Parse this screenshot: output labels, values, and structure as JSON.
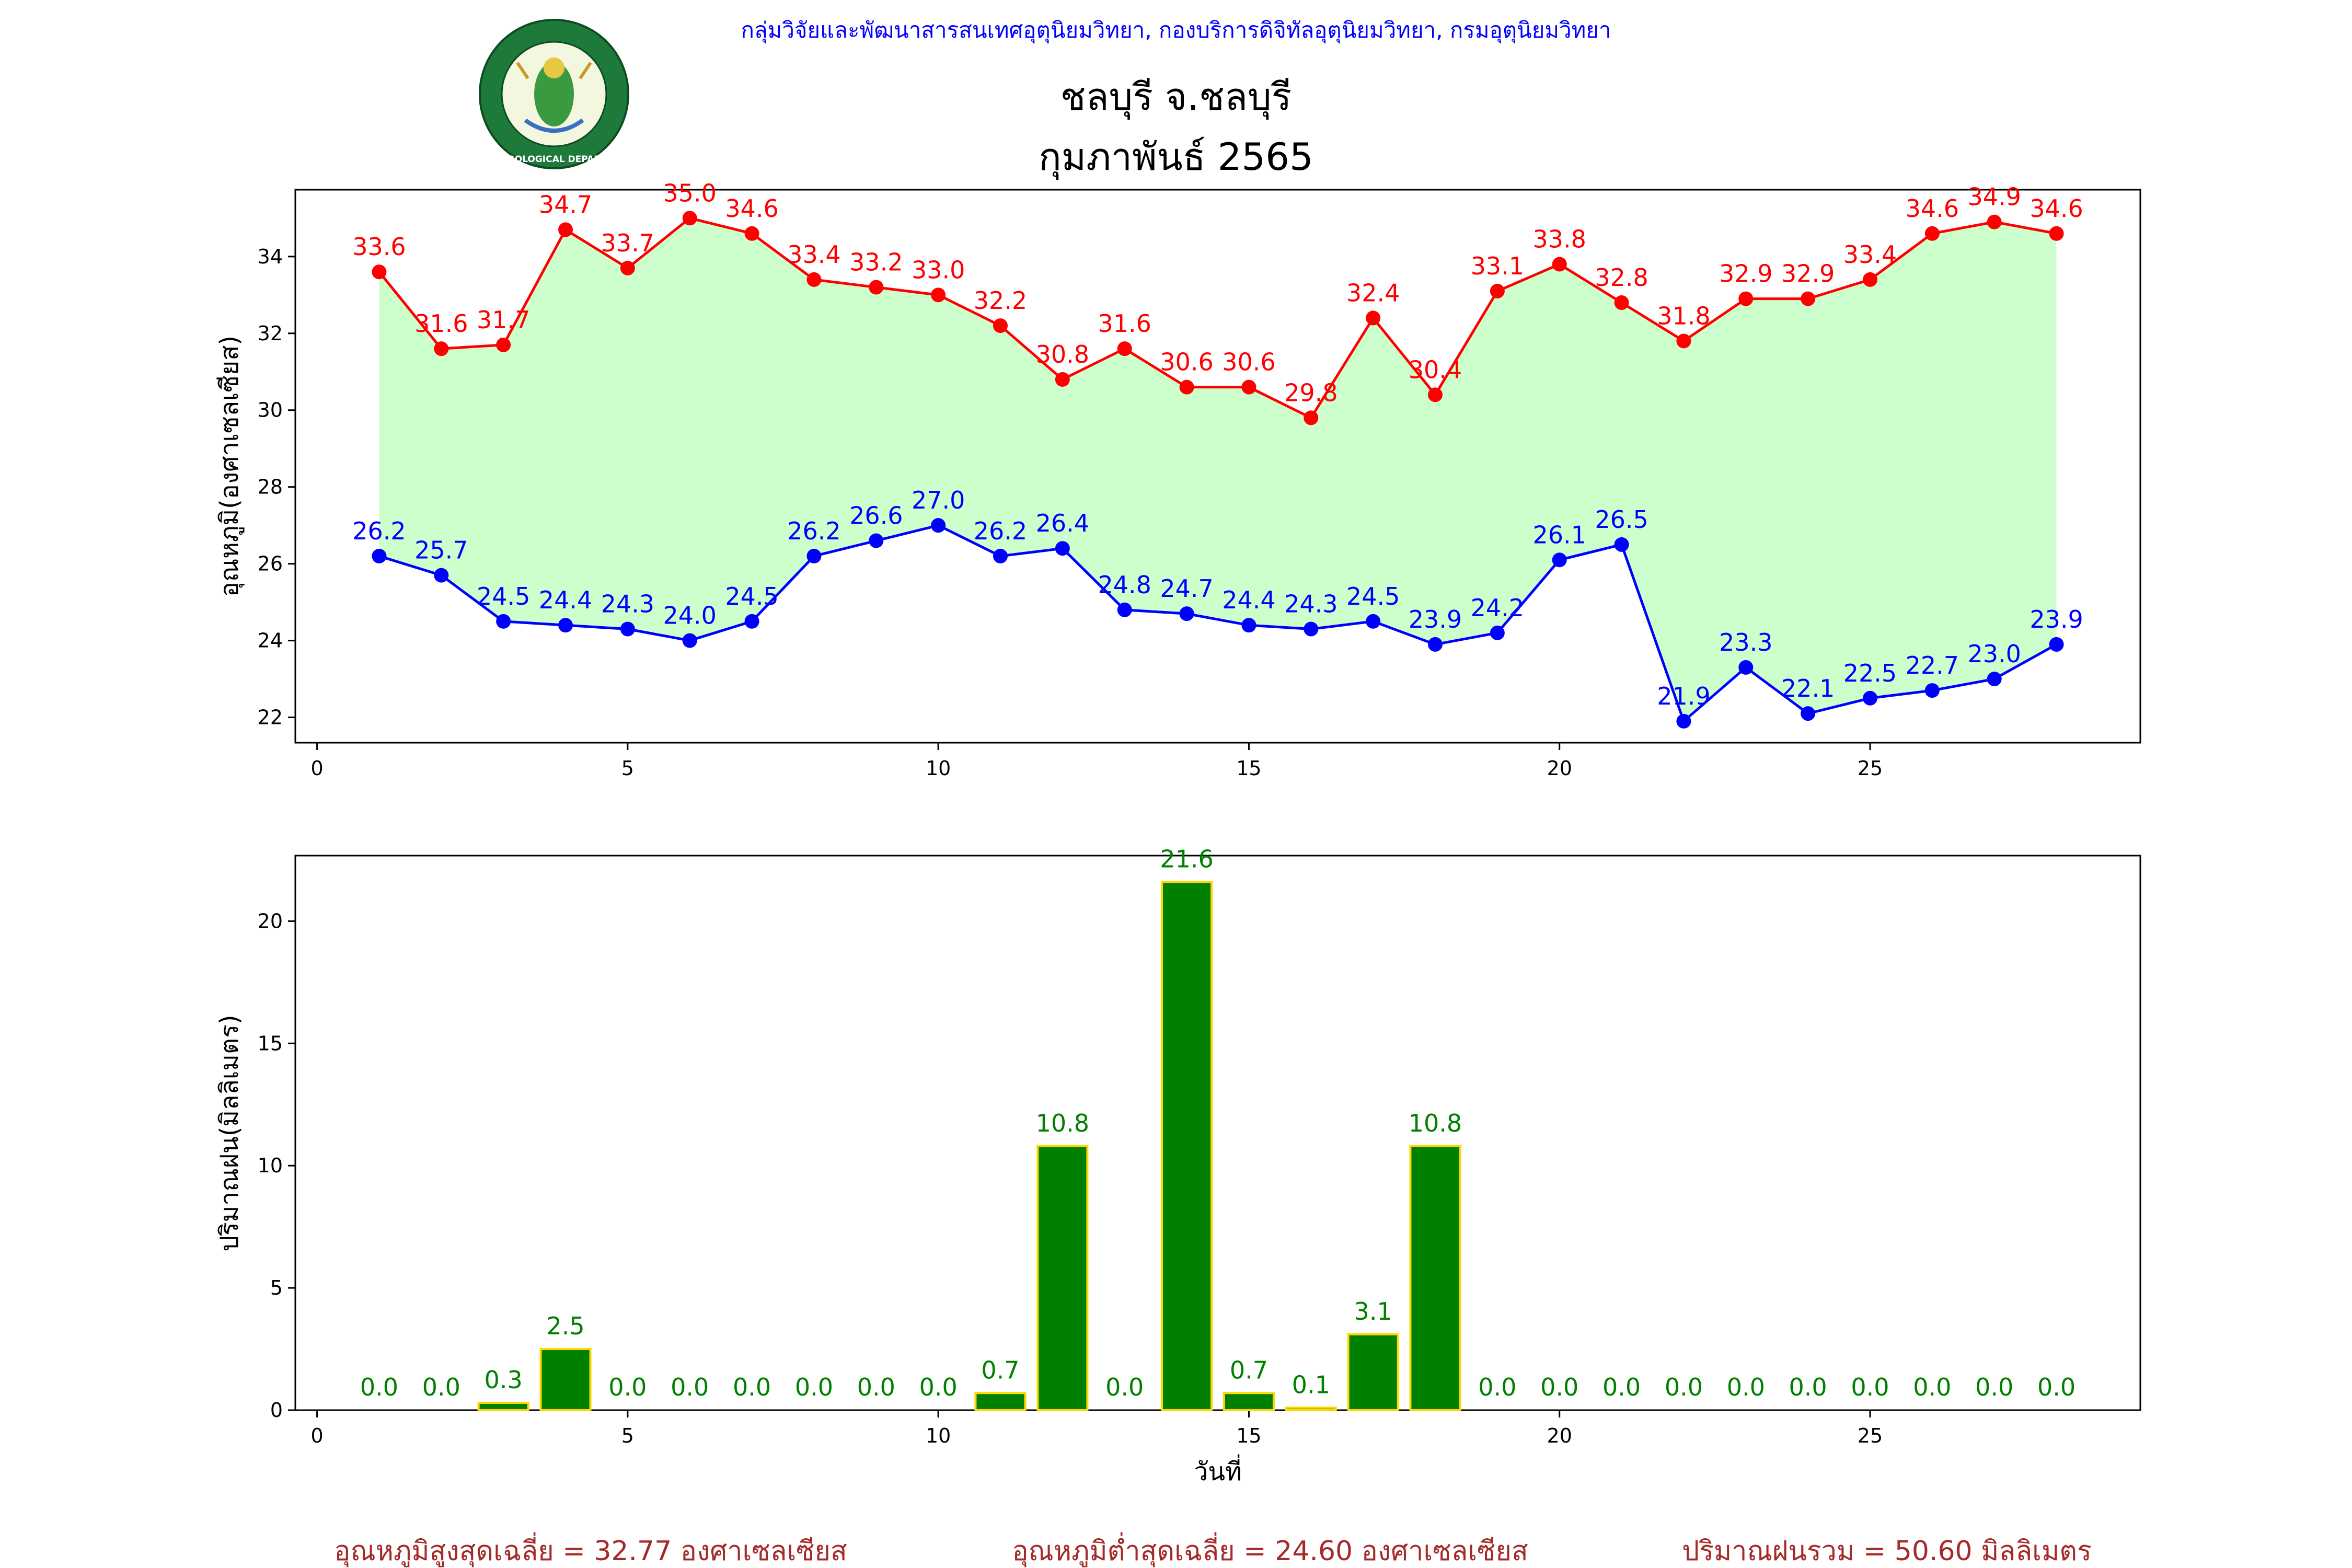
{
  "header": {
    "agency": "กลุ่มวิจัยและพัฒนาสารสนเทศอุตุนิยมวิทยา, กองบริการดิจิทัลอุตุนิยมวิทยา, กรมอุตุนิยมวิทยา",
    "station": "ชลบุรี จ.ชลบุรี",
    "period": "กุมภาพันธ์ 2565"
  },
  "logo": {
    "icon": "meteorological-department-seal-icon",
    "text": "METEOROLOGICAL DEPARTMENT"
  },
  "summary": {
    "avg_max": "อุณหภูมิสูงสุดเฉลี่ย = 32.77 องศาเซลเซียส",
    "avg_min": "อุณหภูมิต่ำสุดเฉลี่ย = 24.60 องศาเซลเซียส",
    "total_rain": "ปริมาณฝนรวม = 50.60 มิลลิเมตร"
  },
  "colors": {
    "max": "#ff0000",
    "min": "#0000ff",
    "fill": "#ccffcc",
    "rain": "#008000",
    "rain_edge": "#ffd700",
    "agency": "#0000ff",
    "summary": "#a52a2a"
  },
  "chart_data": [
    {
      "type": "line",
      "x": [
        1,
        2,
        3,
        4,
        5,
        6,
        7,
        8,
        9,
        10,
        11,
        12,
        13,
        14,
        15,
        16,
        17,
        18,
        19,
        20,
        21,
        22,
        23,
        24,
        25,
        26,
        27,
        28
      ],
      "series": [
        {
          "values": [
            33.6,
            31.6,
            31.7,
            34.7,
            33.7,
            35.0,
            34.6,
            33.4,
            33.2,
            33.0,
            32.2,
            30.8,
            31.6,
            30.6,
            30.6,
            29.8,
            32.4,
            30.4,
            33.1,
            33.8,
            32.8,
            31.8,
            32.9,
            32.9,
            33.4,
            34.6,
            34.9,
            34.6
          ]
        },
        {
          "values": [
            26.2,
            25.7,
            24.5,
            24.4,
            24.3,
            24.0,
            24.5,
            26.2,
            26.6,
            27.0,
            26.2,
            26.4,
            24.8,
            24.7,
            24.4,
            24.3,
            24.5,
            23.9,
            24.2,
            26.1,
            26.5,
            21.9,
            23.3,
            22.1,
            22.5,
            22.7,
            23.0,
            23.9
          ]
        }
      ],
      "ylabel": "อุณหภูมิ(องศาเซลเซียส)",
      "xlabel": "",
      "xlim": [
        -0.35,
        29.35
      ],
      "ylim": [
        21.34,
        35.74
      ],
      "xticks": [
        0,
        5,
        10,
        15,
        20,
        25
      ],
      "yticks": [
        22,
        24,
        26,
        28,
        30,
        32,
        34
      ],
      "fill_between": true,
      "grid": false
    },
    {
      "type": "bar",
      "x": [
        1,
        2,
        3,
        4,
        5,
        6,
        7,
        8,
        9,
        10,
        11,
        12,
        13,
        14,
        15,
        16,
        17,
        18,
        19,
        20,
        21,
        22,
        23,
        24,
        25,
        26,
        27,
        28
      ],
      "values": [
        0.0,
        0.0,
        0.3,
        2.5,
        0.0,
        0.0,
        0.0,
        0.0,
        0.0,
        0.0,
        0.7,
        10.8,
        0.0,
        21.6,
        0.7,
        0.1,
        3.1,
        10.8,
        0.0,
        0.0,
        0.0,
        0.0,
        0.0,
        0.0,
        0.0,
        0.0,
        0.0,
        0.0
      ],
      "ylabel": "ปริมาณฝน(มิลลิเมตร)",
      "xlabel": "วันที่",
      "xlim": [
        -0.35,
        29.35
      ],
      "ylim": [
        0,
        22.68
      ],
      "xticks": [
        0,
        5,
        10,
        15,
        20,
        25
      ],
      "yticks": [
        0,
        5,
        10,
        15,
        20
      ],
      "grid": false
    }
  ]
}
